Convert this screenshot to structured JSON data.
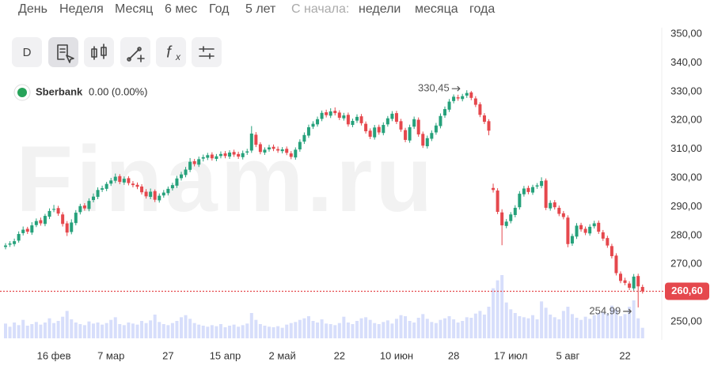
{
  "ui": {
    "menu": [
      "День",
      "Неделя",
      "Месяц",
      "6 мес",
      "Год",
      "5 лет"
    ],
    "since_label": "С начала:",
    "since": [
      "недели",
      "месяца",
      "года"
    ],
    "toolbar": {
      "interval": "D"
    },
    "legend": {
      "name": "Sberbank",
      "change": "0.00 (0.00%)"
    },
    "watermark": "Finam.ru"
  },
  "chart_data": {
    "type": "candlestick",
    "categories": [
      null,
      null,
      null,
      null,
      null,
      null,
      null,
      null,
      null,
      null,
      null,
      "16 фев",
      null,
      null,
      null,
      null,
      null,
      null,
      null,
      null,
      null,
      null,
      null,
      null,
      "7 мар",
      null,
      null,
      null,
      null,
      null,
      null,
      null,
      null,
      null,
      null,
      null,
      null,
      "27",
      null,
      null,
      null,
      null,
      null,
      null,
      null,
      null,
      null,
      null,
      null,
      null,
      "15 апр",
      null,
      null,
      null,
      null,
      null,
      null,
      null,
      null,
      null,
      null,
      null,
      null,
      "2 май",
      null,
      null,
      null,
      null,
      null,
      null,
      null,
      null,
      null,
      null,
      null,
      null,
      "22",
      null,
      null,
      null,
      null,
      null,
      null,
      null,
      null,
      null,
      null,
      null,
      null,
      "10 июн",
      null,
      null,
      null,
      null,
      null,
      null,
      null,
      null,
      null,
      null,
      null,
      null,
      "28",
      null,
      null,
      null,
      null,
      null,
      null,
      null,
      null,
      null,
      null,
      null,
      null,
      "17 июл",
      null,
      null,
      null,
      null,
      null,
      null,
      null,
      null,
      null,
      null,
      null,
      null,
      "5 авг",
      null,
      null,
      null,
      null,
      null,
      null,
      null,
      null,
      null,
      null,
      null,
      null,
      "22",
      null,
      null,
      null,
      null
    ],
    "open": [
      276.0,
      276.8,
      277.0,
      278.2,
      280.8,
      282.3,
      281.0,
      283.6,
      285.3,
      284.0,
      286.5,
      288.9,
      289.5,
      287.3,
      284.2,
      281.2,
      284.3,
      288.1,
      290.4,
      289.2,
      292.3,
      293.4,
      295.9,
      296.2,
      298.0,
      299.0,
      300.6,
      298.4,
      299.9,
      298.0,
      297.6,
      297.0,
      295.2,
      293.4,
      295.4,
      292.2,
      293.9,
      294.7,
      296.4,
      297.3,
      299.9,
      301.0,
      302.8,
      305.8,
      304.6,
      306.7,
      307.0,
      308.1,
      306.6,
      307.6,
      308.5,
      307.4,
      309.0,
      308.3,
      307.2,
      308.8,
      309.5,
      315.0,
      311.7,
      308.8,
      309.9,
      310.8,
      310.0,
      309.3,
      310.1,
      308.5,
      307.1,
      309.9,
      312.6,
      314.7,
      317.8,
      318.6,
      320.5,
      322.8,
      321.6,
      323.3,
      322.7,
      320.7,
      321.9,
      318.4,
      319.9,
      321.4,
      318.8,
      316.4,
      314.1,
      317.7,
      315.6,
      318.6,
      320.5,
      322.5,
      319.7,
      316.6,
      313.0,
      317.8,
      320.2,
      315.3,
      311.0,
      313.6,
      315.8,
      318.0,
      321.7,
      323.7,
      326.7,
      328.0,
      327.4,
      328.6,
      329.7,
      327.6,
      325.6,
      321.7,
      319.7,
      296.5,
      295.6,
      288.0,
      283.3,
      285.0,
      287.1,
      289.8,
      294.3,
      296.5,
      294.9,
      297.0,
      297.2,
      299.1,
      289.4,
      291.5,
      289.6,
      287.7,
      286.2,
      277.2,
      279.6,
      283.6,
      282.3,
      280.7,
      283.2,
      284.4,
      281.1,
      279.1,
      276.3,
      273.0,
      266.7,
      264.4,
      263.3,
      261.6,
      265.9,
      262.1
    ],
    "high": [
      277.3,
      278.0,
      278.9,
      281.4,
      283.1,
      283.0,
      284.6,
      285.9,
      286.2,
      287.5,
      289.4,
      290.6,
      290.3,
      288.1,
      285.0,
      285.6,
      288.8,
      291.0,
      291.2,
      292.9,
      294.6,
      296.7,
      297.3,
      298.6,
      300.0,
      301.5,
      301.3,
      300.5,
      300.6,
      298.9,
      298.4,
      297.8,
      296.1,
      296.3,
      296.0,
      294.6,
      295.8,
      297.0,
      298.3,
      300.7,
      302.1,
      303.8,
      306.9,
      306.6,
      307.4,
      308.1,
      308.7,
      308.9,
      308.3,
      309.2,
      309.3,
      309.6,
      309.8,
      309.1,
      309.5,
      310.1,
      318.0,
      315.9,
      312.4,
      310.6,
      311.5,
      311.6,
      310.9,
      310.7,
      310.9,
      309.3,
      310.6,
      313.4,
      315.8,
      318.5,
      319.7,
      321.3,
      323.4,
      323.7,
      324.2,
      324.5,
      323.5,
      322.6,
      322.7,
      320.6,
      322.1,
      322.2,
      319.6,
      317.2,
      318.4,
      318.5,
      319.3,
      321.5,
      323.2,
      323.3,
      320.5,
      317.4,
      318.5,
      321.3,
      321.0,
      316.1,
      314.7,
      316.5,
      319.1,
      322.4,
      324.8,
      327.4,
      329.0,
      328.9,
      329.2,
      330.45,
      330.2,
      328.4,
      326.3,
      322.5,
      320.4,
      298.0,
      296.4,
      289.1,
      285.7,
      288.1,
      290.5,
      295.4,
      297.2,
      297.3,
      297.6,
      298.2,
      300.2,
      299.8,
      292.2,
      292.3,
      290.4,
      288.5,
      287.0,
      280.6,
      284.3,
      284.4,
      283.1,
      283.9,
      285.1,
      285.2,
      281.9,
      279.9,
      277.1,
      273.8,
      267.5,
      265.3,
      264.1,
      266.6,
      266.7,
      262.9
    ],
    "low": [
      275.2,
      276.0,
      276.2,
      277.5,
      280.0,
      280.5,
      280.2,
      282.9,
      283.4,
      283.2,
      285.7,
      288.1,
      286.8,
      283.1,
      279.8,
      280.4,
      283.5,
      287.3,
      288.6,
      288.4,
      291.5,
      292.6,
      295.1,
      295.4,
      297.2,
      298.2,
      297.8,
      297.6,
      297.4,
      296.7,
      296.1,
      294.2,
      292.8,
      292.6,
      291.6,
      291.4,
      293.1,
      293.9,
      295.6,
      296.5,
      299.1,
      300.2,
      302.0,
      304.0,
      303.8,
      305.7,
      306.2,
      306.0,
      305.8,
      306.8,
      306.8,
      306.6,
      307.3,
      306.6,
      306.4,
      308.0,
      308.7,
      310.7,
      308.2,
      308.0,
      309.1,
      309.3,
      308.7,
      308.5,
      307.9,
      306.5,
      306.3,
      309.1,
      311.8,
      313.9,
      317.0,
      317.8,
      319.7,
      321.0,
      320.8,
      321.7,
      320.1,
      319.9,
      317.8,
      317.6,
      319.1,
      318.2,
      315.4,
      313.5,
      313.3,
      315.0,
      314.8,
      317.8,
      319.7,
      318.7,
      316.0,
      312.4,
      312.2,
      317.0,
      314.3,
      310.4,
      310.2,
      312.8,
      315.0,
      317.2,
      320.9,
      322.9,
      325.9,
      326.8,
      326.6,
      327.8,
      327.0,
      324.6,
      321.1,
      318.7,
      314.8,
      294.9,
      287.4,
      276.6,
      282.5,
      284.2,
      286.3,
      289.0,
      293.5,
      294.3,
      294.1,
      296.2,
      296.4,
      288.8,
      288.6,
      289.0,
      286.7,
      285.6,
      275.9,
      276.4,
      278.8,
      281.3,
      280.1,
      279.9,
      282.4,
      280.5,
      278.1,
      275.7,
      272.0,
      266.1,
      263.4,
      262.7,
      261.0,
      260.8,
      254.99,
      259.8
    ],
    "close": [
      276.5,
      277.2,
      278.0,
      280.5,
      282.0,
      281.3,
      283.5,
      285.0,
      284.2,
      286.8,
      288.5,
      289.2,
      287.6,
      284.0,
      281.0,
      284.5,
      287.9,
      290.2,
      289.4,
      292.0,
      293.5,
      295.8,
      296.4,
      297.9,
      299.1,
      300.4,
      298.6,
      299.7,
      298.2,
      297.5,
      296.9,
      295.0,
      293.6,
      295.2,
      292.4,
      293.8,
      294.9,
      296.2,
      297.5,
      299.8,
      301.2,
      302.9,
      305.6,
      304.8,
      306.5,
      307.2,
      307.9,
      306.8,
      307.5,
      308.3,
      307.6,
      308.8,
      308.1,
      307.4,
      308.6,
      309.2,
      315.4,
      311.5,
      309.0,
      309.8,
      310.6,
      310.1,
      309.5,
      309.9,
      308.7,
      307.3,
      309.8,
      312.5,
      314.9,
      317.6,
      318.8,
      320.4,
      322.6,
      321.8,
      323.1,
      322.5,
      320.9,
      321.7,
      318.6,
      319.8,
      321.2,
      319.0,
      316.2,
      314.3,
      317.5,
      315.8,
      318.4,
      320.7,
      322.3,
      319.5,
      316.8,
      313.2,
      317.6,
      320.4,
      315.1,
      311.2,
      313.8,
      315.6,
      318.2,
      321.5,
      323.9,
      326.5,
      328.2,
      327.6,
      328.4,
      329.5,
      327.8,
      325.4,
      321.9,
      319.5,
      316.4,
      295.8,
      288.2,
      283.5,
      284.8,
      287.3,
      289.6,
      294.5,
      296.3,
      295.1,
      296.8,
      297.4,
      298.9,
      289.6,
      291.3,
      289.8,
      287.5,
      286.4,
      277.0,
      279.8,
      283.4,
      282.1,
      280.9,
      283.0,
      284.2,
      281.3,
      278.9,
      276.5,
      272.8,
      266.9,
      264.2,
      263.5,
      261.8,
      265.7,
      262.3,
      260.6
    ],
    "volume": [
      28,
      22,
      30,
      25,
      35,
      24,
      27,
      31,
      26,
      30,
      38,
      29,
      33,
      41,
      52,
      36,
      30,
      27,
      25,
      32,
      28,
      30,
      26,
      29,
      35,
      40,
      27,
      25,
      30,
      28,
      26,
      33,
      29,
      34,
      45,
      31,
      27,
      25,
      29,
      33,
      40,
      44,
      37,
      29,
      26,
      24,
      22,
      25,
      23,
      27,
      21,
      24,
      26,
      22,
      25,
      28,
      48,
      35,
      27,
      24,
      22,
      21,
      23,
      20,
      26,
      29,
      31,
      35,
      38,
      42,
      33,
      30,
      36,
      28,
      27,
      25,
      29,
      41,
      30,
      27,
      33,
      38,
      40,
      35,
      29,
      27,
      31,
      34,
      28,
      37,
      44,
      42,
      33,
      30,
      39,
      46,
      37,
      31,
      29,
      35,
      38,
      42,
      36,
      30,
      33,
      40,
      39,
      47,
      52,
      45,
      60,
      95,
      110,
      120,
      68,
      55,
      48,
      42,
      40,
      38,
      44,
      36,
      70,
      58,
      45,
      40,
      36,
      52,
      60,
      46,
      39,
      35,
      41,
      37,
      44,
      48,
      50,
      47,
      62,
      55,
      42,
      46,
      60,
      72,
      38,
      20
    ],
    "ylim": [
      243.7,
      352.2
    ],
    "yticks": [
      {
        "value": 250,
        "label": "250,00"
      },
      {
        "value": 260,
        "label": "260,00"
      },
      {
        "value": 270,
        "label": "270,00"
      },
      {
        "value": 280,
        "label": "280,00"
      },
      {
        "value": 290,
        "label": "290,00"
      },
      {
        "value": 300,
        "label": "300,00"
      },
      {
        "value": 310,
        "label": "310,00"
      },
      {
        "value": 320,
        "label": "320,00"
      },
      {
        "value": 330,
        "label": "330,00"
      },
      {
        "value": 340,
        "label": "340,00"
      },
      {
        "value": 350,
        "label": "350,00"
      }
    ],
    "grid": false,
    "up_color": "#26a17b",
    "down_color": "#e5484d",
    "volume_color": "#d7defb",
    "last_price": {
      "value": 260.6,
      "label": "260,60"
    },
    "annotations": [
      {
        "value": 330.45,
        "label": "330,45"
      },
      {
        "value": 254.99,
        "label": "254,99"
      }
    ]
  }
}
